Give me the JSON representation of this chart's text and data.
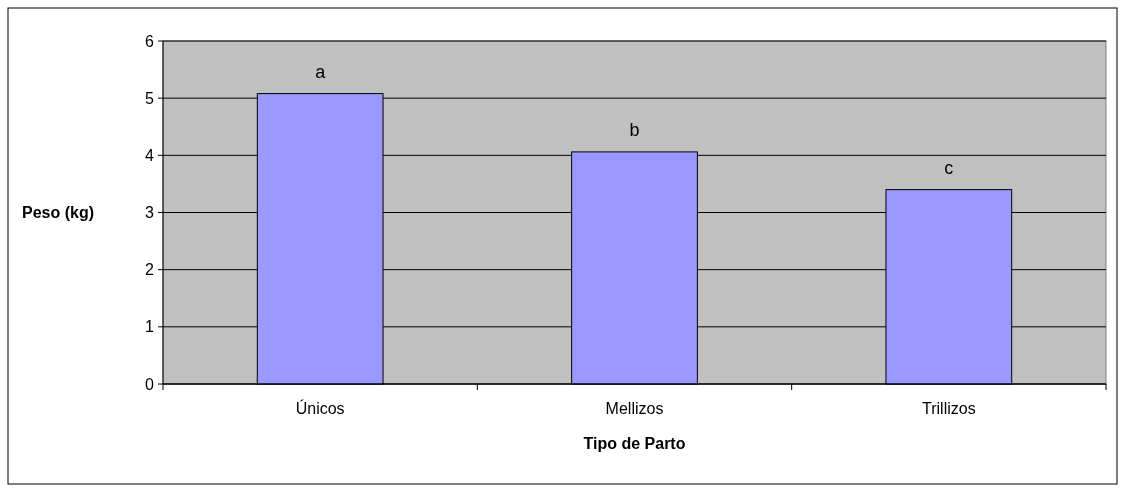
{
  "chart_data": {
    "type": "bar",
    "xlabel": "Tipo de Parto",
    "ylabel": "Peso (kg)",
    "categories": [
      "Únicos",
      "Mellizos",
      "Trillizos"
    ],
    "series": [
      {
        "color": "#9999ff",
        "values": [
          5.08,
          4.06,
          3.4
        ]
      }
    ],
    "ylim": [
      0,
      6
    ],
    "yticks": [
      0,
      1,
      2,
      3,
      4,
      5,
      6
    ],
    "grid": "y",
    "annotations": [
      {
        "text": "a",
        "x": "Únicos",
        "y": 5.08
      },
      {
        "text": "b",
        "x": "Mellizos",
        "y": 4.06
      },
      {
        "text": "c",
        "x": "Trillizos",
        "y": 3.4
      }
    ]
  }
}
